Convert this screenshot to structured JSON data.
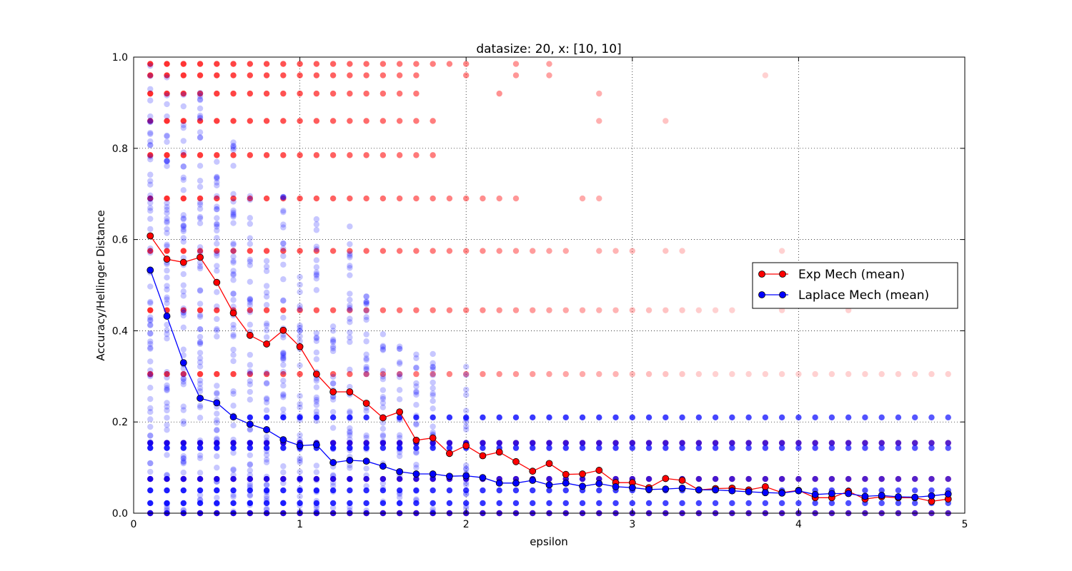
{
  "chart_data": {
    "type": "scatter",
    "title": "datasize: 20, x: [10, 10]",
    "xlabel": "epsilon",
    "ylabel": "Accuracy/Hellinger Distance",
    "xlim": [
      0,
      5
    ],
    "ylim": [
      0,
      1.0
    ],
    "xticks": [
      0,
      1,
      2,
      3,
      4,
      5
    ],
    "xtick_labels": [
      "0",
      "1",
      "2",
      "3",
      "4",
      "5"
    ],
    "yticks": [
      0.0,
      0.2,
      0.4,
      0.6,
      0.8,
      1.0
    ],
    "ytick_labels": [
      "0.0",
      "0.2",
      "0.4",
      "0.6",
      "0.8",
      "1.0"
    ],
    "grid": true,
    "legend_position": "center-right",
    "x": [
      0.1,
      0.2,
      0.3,
      0.4,
      0.5,
      0.6,
      0.7,
      0.8,
      0.9,
      1.0,
      1.1,
      1.2,
      1.3,
      1.4,
      1.5,
      1.6,
      1.7,
      1.8,
      1.9,
      2.0,
      2.1,
      2.2,
      2.3,
      2.4,
      2.5,
      2.6,
      2.7,
      2.8,
      2.9,
      3.0,
      3.1,
      3.2,
      3.3,
      3.4,
      3.5,
      3.6,
      3.7,
      3.8,
      3.9,
      4.0,
      4.1,
      4.2,
      4.3,
      4.4,
      4.5,
      4.6,
      4.7,
      4.8,
      4.9
    ],
    "series": [
      {
        "name": "Exp Mech (mean)",
        "color": "#ff0000",
        "line_color": "#ff0000",
        "marker_fill": "#ff0000",
        "values": [
          0.608,
          0.557,
          0.55,
          0.561,
          0.506,
          0.439,
          0.39,
          0.371,
          0.401,
          0.365,
          0.305,
          0.266,
          0.266,
          0.241,
          0.209,
          0.222,
          0.16,
          0.165,
          0.131,
          0.148,
          0.126,
          0.134,
          0.113,
          0.092,
          0.109,
          0.085,
          0.086,
          0.094,
          0.067,
          0.067,
          0.056,
          0.076,
          0.072,
          0.051,
          0.054,
          0.055,
          0.051,
          0.058,
          0.045,
          0.05,
          0.034,
          0.034,
          0.048,
          0.031,
          0.036,
          0.034,
          0.034,
          0.026,
          0.031
        ]
      },
      {
        "name": "Laplace Mech (mean)",
        "color": "#0000ff",
        "line_color": "#0000ff",
        "marker_fill": "#0000ff",
        "values": [
          0.533,
          0.432,
          0.33,
          0.252,
          0.242,
          0.211,
          0.195,
          0.183,
          0.161,
          0.148,
          0.15,
          0.111,
          0.116,
          0.114,
          0.103,
          0.091,
          0.086,
          0.086,
          0.081,
          0.082,
          0.078,
          0.066,
          0.066,
          0.072,
          0.062,
          0.066,
          0.059,
          0.065,
          0.058,
          0.056,
          0.052,
          0.053,
          0.055,
          0.051,
          0.051,
          0.049,
          0.047,
          0.045,
          0.044,
          0.049,
          0.041,
          0.043,
          0.043,
          0.037,
          0.039,
          0.036,
          0.035,
          0.038,
          0.042
        ]
      }
    ],
    "scatter_clouds": [
      {
        "color": "#ff0000",
        "levels": [
          {
            "y": 0.985,
            "until": 1.9,
            "extra": [
              2.0,
              2.3,
              2.5
            ]
          },
          {
            "y": 0.96,
            "until": 1.7,
            "extra": [
              2.0,
              2.3,
              2.5,
              3.8
            ]
          },
          {
            "y": 0.92,
            "until": 1.7,
            "extra": [
              2.2,
              2.8
            ]
          },
          {
            "y": 0.86,
            "until": 1.8,
            "extra": [
              2.8,
              3.2
            ]
          },
          {
            "y": 0.785,
            "until": 1.8,
            "extra": []
          },
          {
            "y": 0.69,
            "until": 2.3,
            "extra": [
              2.7,
              2.8
            ]
          },
          {
            "y": 0.575,
            "until": 2.6,
            "extra": [
              2.8,
              2.9,
              3.0,
              3.2,
              3.3,
              3.9
            ]
          },
          {
            "y": 0.445,
            "until": 3.6,
            "extra": [
              3.9,
              4.3
            ]
          },
          {
            "y": 0.305,
            "until": 4.9,
            "extra": []
          },
          {
            "y": 0.154,
            "until": 4.9,
            "extra": []
          },
          {
            "y": 0.075,
            "until": 4.9,
            "extra": []
          },
          {
            "y": 0.0,
            "until": 4.9,
            "extra": []
          }
        ]
      },
      {
        "color": "#0000ff",
        "levels": [
          {
            "y": 0.21,
            "from": 0.7,
            "until": 4.9
          },
          {
            "y": 0.154,
            "from": 0.1,
            "until": 4.9
          },
          {
            "y": 0.143,
            "from": 0.1,
            "until": 4.9
          },
          {
            "y": 0.075,
            "from": 0.1,
            "until": 4.9
          },
          {
            "y": 0.05,
            "from": 0.1,
            "until": 4.9
          },
          {
            "y": 0.022,
            "from": 0.1,
            "until": 4.9
          },
          {
            "y": 0.0,
            "from": 0.1,
            "until": 4.9
          }
        ],
        "spread": [
          {
            "x": 0.1,
            "max": 0.985
          },
          {
            "x": 0.2,
            "max": 0.96
          },
          {
            "x": 0.3,
            "max": 0.92
          },
          {
            "x": 0.4,
            "max": 0.93
          },
          {
            "x": 0.5,
            "max": 0.81
          },
          {
            "x": 0.6,
            "max": 0.82
          },
          {
            "x": 0.7,
            "max": 0.7
          },
          {
            "x": 0.8,
            "max": 0.59
          },
          {
            "x": 0.9,
            "max": 0.72
          },
          {
            "x": 1.0,
            "max": 0.54
          },
          {
            "x": 1.1,
            "max": 0.66
          },
          {
            "x": 1.2,
            "max": 0.45
          },
          {
            "x": 1.3,
            "max": 0.63
          },
          {
            "x": 1.4,
            "max": 0.48
          },
          {
            "x": 1.5,
            "max": 0.4
          },
          {
            "x": 1.6,
            "max": 0.39
          },
          {
            "x": 1.7,
            "max": 0.36
          },
          {
            "x": 1.8,
            "max": 0.36
          },
          {
            "x": 2.0,
            "max": 0.38
          }
        ]
      }
    ]
  }
}
